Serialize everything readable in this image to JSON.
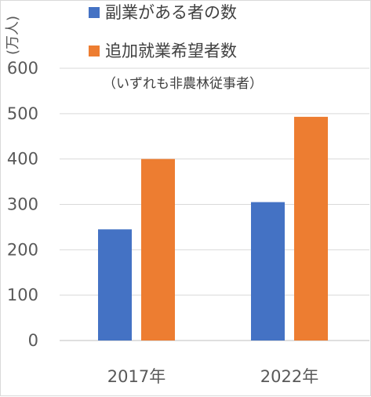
{
  "chart_data": {
    "type": "bar",
    "categories": [
      "2017年",
      "2022年"
    ],
    "series": [
      {
        "name": "副業がある者の数",
        "values": [
          245,
          305
        ],
        "color": "#4472C4"
      },
      {
        "name": "追加就業希望者数",
        "values": [
          400,
          493
        ],
        "color": "#ED7D31"
      }
    ],
    "note": "（いずれも非農林従事者）",
    "ylabel": "(万人)",
    "ylim": [
      0,
      600
    ],
    "yticks": [
      0,
      100,
      200,
      300,
      400,
      500,
      600
    ],
    "grid": true,
    "legend_position": "top"
  }
}
